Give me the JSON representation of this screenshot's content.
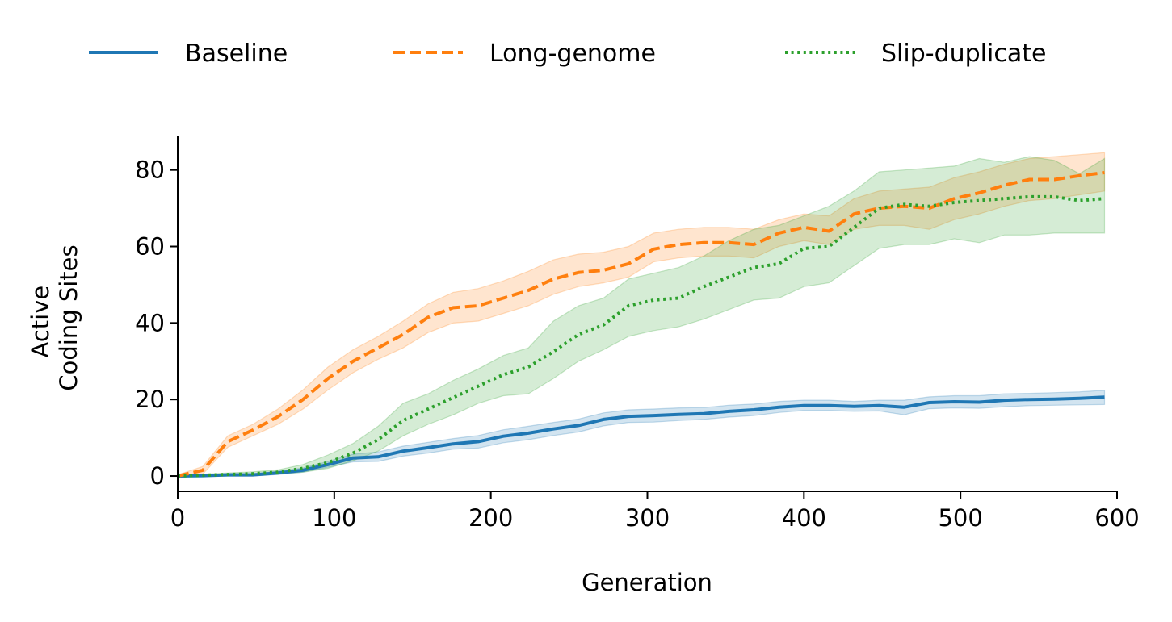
{
  "chart_data": {
    "type": "line",
    "title": "",
    "xlabel": "Generation",
    "ylabel_lines": [
      "Active",
      "Coding Sites"
    ],
    "xlim": [
      0,
      600
    ],
    "ylim": [
      -4,
      89
    ],
    "xticks": [
      0,
      100,
      200,
      300,
      400,
      500,
      600
    ],
    "yticks": [
      0,
      20,
      40,
      60,
      80
    ],
    "grid": false,
    "legend_placement": "top-center",
    "x": [
      0,
      16,
      32,
      48,
      64,
      80,
      96,
      112,
      128,
      144,
      160,
      176,
      192,
      208,
      224,
      240,
      256,
      272,
      288,
      304,
      320,
      336,
      352,
      368,
      384,
      400,
      416,
      432,
      448,
      464,
      480,
      496,
      512,
      528,
      544,
      560,
      576,
      592
    ],
    "series": [
      {
        "name": "Baseline",
        "color": "#1f77b4",
        "style": "solid",
        "values": [
          0,
          0.1,
          0.3,
          0.3,
          0.8,
          1.5,
          3.0,
          4.7,
          5.0,
          6.5,
          7.4,
          8.4,
          9.0,
          10.4,
          11.2,
          12.3,
          13.2,
          14.8,
          15.6,
          15.8,
          16.1,
          16.3,
          16.9,
          17.3,
          18.0,
          18.4,
          18.4,
          18.2,
          18.4,
          18.0,
          19.2,
          19.4,
          19.3,
          19.8,
          20.0,
          20.1,
          20.3,
          20.6
        ],
        "lower": [
          0,
          0,
          0,
          0,
          0.4,
          1.0,
          2.3,
          3.7,
          3.8,
          5.2,
          6.0,
          7.0,
          7.3,
          8.7,
          9.5,
          10.6,
          11.5,
          13.1,
          14.0,
          14.1,
          14.5,
          14.8,
          15.4,
          15.8,
          16.6,
          17.1,
          17.1,
          16.9,
          17.0,
          16.0,
          17.6,
          17.8,
          17.7,
          18.1,
          18.4,
          18.5,
          18.6,
          18.7
        ],
        "upper": [
          0,
          0.3,
          0.6,
          0.6,
          1.3,
          2.1,
          3.8,
          5.7,
          6.3,
          7.8,
          8.8,
          9.8,
          10.6,
          12.1,
          13.0,
          14.0,
          14.9,
          16.5,
          17.3,
          17.5,
          17.8,
          17.9,
          18.5,
          18.8,
          19.5,
          19.8,
          19.8,
          19.5,
          19.8,
          19.8,
          20.7,
          21.0,
          21.0,
          21.5,
          21.6,
          21.8,
          22.0,
          22.4
        ]
      },
      {
        "name": "Long-genome",
        "color": "#ff7f0e",
        "style": "dashed",
        "values": [
          0,
          1.5,
          9.0,
          12.0,
          15.5,
          20.0,
          25.5,
          30.0,
          33.5,
          37.0,
          41.5,
          44.0,
          44.5,
          46.5,
          48.5,
          51.5,
          53.2,
          53.8,
          55.5,
          59.3,
          60.5,
          61.0,
          61.0,
          60.5,
          63.5,
          65.0,
          64.0,
          68.5,
          70.0,
          70.5,
          70.0,
          72.5,
          74.0,
          76.0,
          77.5,
          77.5,
          78.5,
          79.3
        ],
        "lower": [
          0,
          0.5,
          7.5,
          10.5,
          13.5,
          17.5,
          22.5,
          27.0,
          30.5,
          33.5,
          37.5,
          40.0,
          40.5,
          42.5,
          44.5,
          47.5,
          49.5,
          50.5,
          52.0,
          56.0,
          57.0,
          57.5,
          57.5,
          57.0,
          60.0,
          61.5,
          60.5,
          64.5,
          65.5,
          65.5,
          64.5,
          67.0,
          68.5,
          70.5,
          72.0,
          72.5,
          73.5,
          74.5
        ],
        "upper": [
          0.3,
          2.5,
          10.5,
          13.5,
          17.5,
          22.5,
          28.5,
          33.0,
          36.5,
          40.5,
          45.0,
          48.0,
          49.0,
          51.0,
          53.5,
          56.5,
          58.0,
          58.5,
          60.0,
          63.5,
          64.5,
          65.0,
          65.0,
          64.5,
          67.0,
          68.5,
          68.0,
          72.5,
          74.5,
          75.0,
          75.5,
          78.0,
          79.5,
          81.5,
          83.0,
          83.5,
          84.0,
          84.5
        ]
      },
      {
        "name": "Slip-duplicate",
        "color": "#2ca02c",
        "style": "dotted",
        "values": [
          0,
          0.2,
          0.4,
          0.6,
          1.0,
          2.0,
          3.5,
          6.0,
          9.5,
          14.5,
          17.5,
          20.5,
          23.5,
          26.5,
          28.5,
          32.5,
          37.0,
          39.5,
          44.5,
          46.0,
          46.5,
          49.5,
          52.0,
          54.5,
          55.5,
          59.5,
          60.0,
          65.0,
          70.0,
          71.0,
          70.5,
          71.5,
          72.0,
          72.5,
          73.0,
          73.0,
          72.0,
          72.5
        ],
        "lower": [
          0,
          0,
          0.1,
          0.2,
          0.5,
          1.0,
          2.0,
          4.0,
          6.5,
          10.5,
          13.5,
          16.0,
          19.0,
          21.0,
          21.5,
          25.5,
          30.0,
          33.0,
          36.5,
          38.0,
          39.0,
          41.0,
          43.5,
          46.0,
          46.5,
          49.5,
          50.5,
          55.0,
          59.5,
          60.5,
          60.5,
          62.0,
          61.0,
          63.0,
          63.0,
          63.5,
          63.5,
          63.5
        ],
        "upper": [
          0,
          0.5,
          0.8,
          1.1,
          1.6,
          3.0,
          5.5,
          8.5,
          13.0,
          19.0,
          21.5,
          25.0,
          28.0,
          31.5,
          33.5,
          40.5,
          44.5,
          46.5,
          51.5,
          53.0,
          54.5,
          57.5,
          61.5,
          64.5,
          65.5,
          68.0,
          70.5,
          74.5,
          79.5,
          80.0,
          80.5,
          81.0,
          83.0,
          82.0,
          83.5,
          82.5,
          79.0,
          83.0
        ]
      }
    ]
  }
}
